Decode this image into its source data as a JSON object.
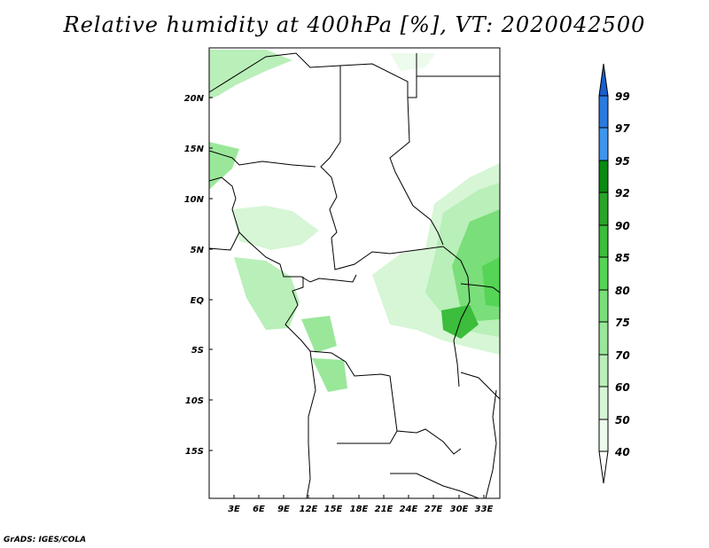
{
  "title": "Relative humidity at 400hPa [%], VT: 2020042500",
  "credit": "GrADS: IGES/COLA",
  "map": {
    "y_ticks": [
      "20N",
      "15N",
      "10N",
      "5N",
      "EQ",
      "5S",
      "10S",
      "15S"
    ],
    "x_ticks": [
      "3E",
      "6E",
      "9E",
      "12E",
      "15E",
      "18E",
      "21E",
      "24E",
      "27E",
      "30E",
      "33E"
    ]
  },
  "colorbar": {
    "levels": [
      "99",
      "97",
      "95",
      "92",
      "90",
      "85",
      "80",
      "75",
      "70",
      "60",
      "50",
      "40"
    ],
    "colors": [
      "#1a5fcf",
      "#2a7ae0",
      "#3f95ee",
      "#0a8a12",
      "#2aa52a",
      "#3cbd3c",
      "#55d455",
      "#7ade7a",
      "#9ae79a",
      "#b9efb9",
      "#d6f6d6",
      "#ecfbec",
      "#ffffff"
    ]
  }
}
